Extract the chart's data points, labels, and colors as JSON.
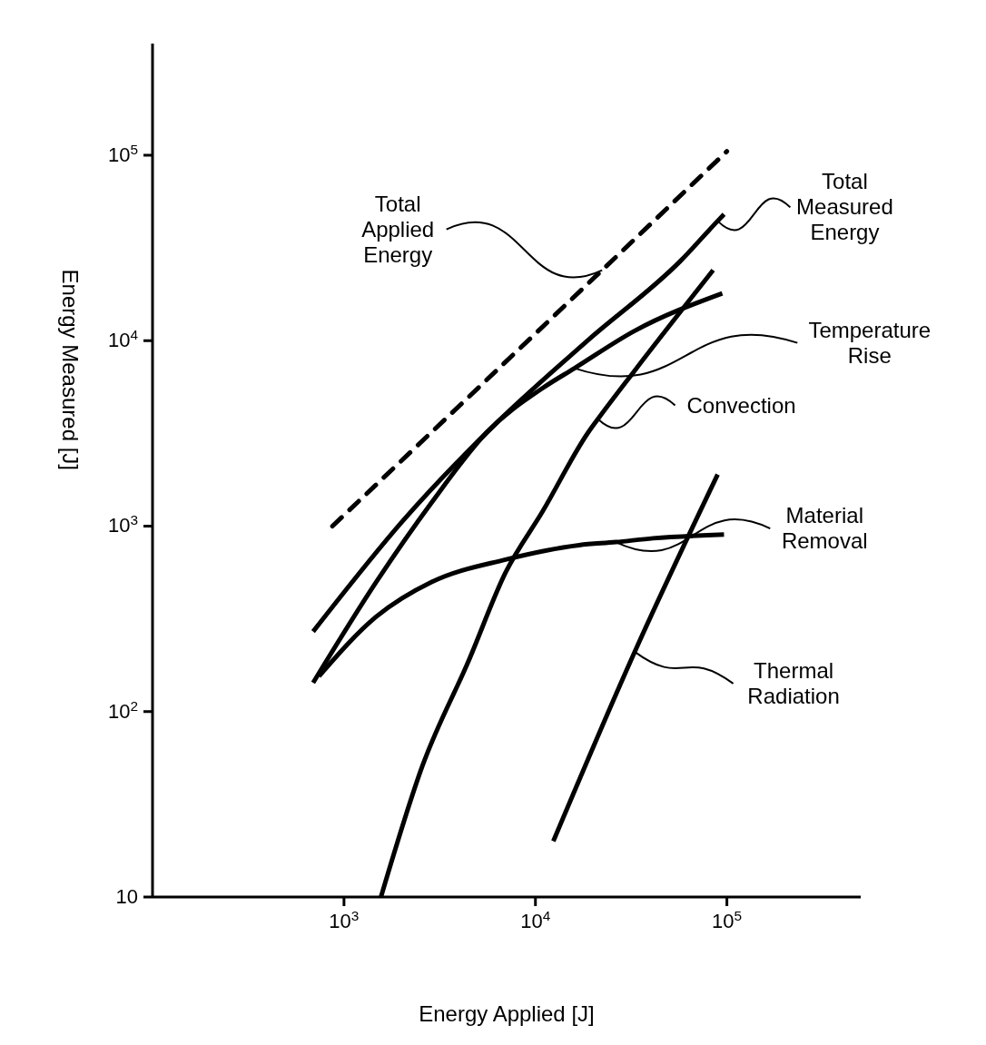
{
  "chart_data": {
    "type": "line",
    "xlabel": "Energy Applied [J]",
    "ylabel": "Energy Measured [J]",
    "log": "xy",
    "xlim": [
      100,
      500000
    ],
    "ylim": [
      10,
      400000
    ],
    "xticks": [
      {
        "value": 1000,
        "label": "10$^{3}$"
      },
      {
        "value": 10000,
        "label": "10$^{4}$"
      },
      {
        "value": 100000,
        "label": "10$^{5}$"
      }
    ],
    "yticks": [
      10,
      {
        "value": 100,
        "label": "10$^{2}$"
      },
      {
        "value": 1000,
        "label": "10$^{3}$"
      },
      {
        "value": 10000,
        "label": "10$^{4}$"
      },
      {
        "value": 100000,
        "label": "10$^{5}$"
      }
    ],
    "grid": false,
    "marker": "none",
    "series": [
      {
        "color": "#000000",
        "line_style": "dashed",
        "x": [
          870,
          22300,
          100000
        ],
        "values": [
          1000,
          24000,
          105000
        ]
      },
      {
        "color": "#000000",
        "line_style": "solid",
        "x": [
          690,
          2050,
          6240,
          18900,
          57400,
          89500,
          96600
        ],
        "values": [
          270,
          1080,
          3590,
          10100,
          27000,
          44200,
          48000
        ]
      },
      {
        "color": "#000000",
        "line_style": "solid",
        "x": [
          690,
          1475,
          2870,
          5580,
          10900,
          16000,
          33000,
          94600
        ],
        "values": [
          143,
          500,
          1340,
          3210,
          5550,
          7100,
          11300,
          18000
        ]
      },
      {
        "color": "#000000",
        "line_style": "solid",
        "x": [
          740,
          1475,
          2870,
          6970,
          16900,
          26300,
          41100,
          96600
        ],
        "values": [
          155,
          325,
          500,
          660,
          790,
          820,
          860,
          900
        ]
      },
      {
        "color": "#000000",
        "line_style": "solid",
        "x": [
          1560,
          2570,
          4480,
          6970,
          10900,
          18900,
          21200,
          33000,
          84700
        ],
        "values": [
          10,
          51,
          188,
          560,
          1200,
          3210,
          3780,
          6900,
          24000
        ]
      },
      {
        "color": "#000000",
        "line_style": "solid",
        "x": [
          12400,
          33000,
          89500
        ],
        "values": [
          20,
          210,
          1900
        ]
      }
    ],
    "annotations": [
      {
        "text": "Total Applied Energy",
        "x": 22300,
        "y": 24000
      },
      {
        "text": "Total Measured Energy",
        "x": 89500,
        "y": 44200
      },
      {
        "text": "Temperature Rise",
        "x": 16000,
        "y": 7100
      },
      {
        "text": "Convection",
        "x": 21200,
        "y": 3780
      },
      {
        "text": "Material Removal",
        "x": 26300,
        "y": 820
      },
      {
        "text": "Thermal Radiation",
        "x": 33000,
        "y": 210
      }
    ]
  }
}
